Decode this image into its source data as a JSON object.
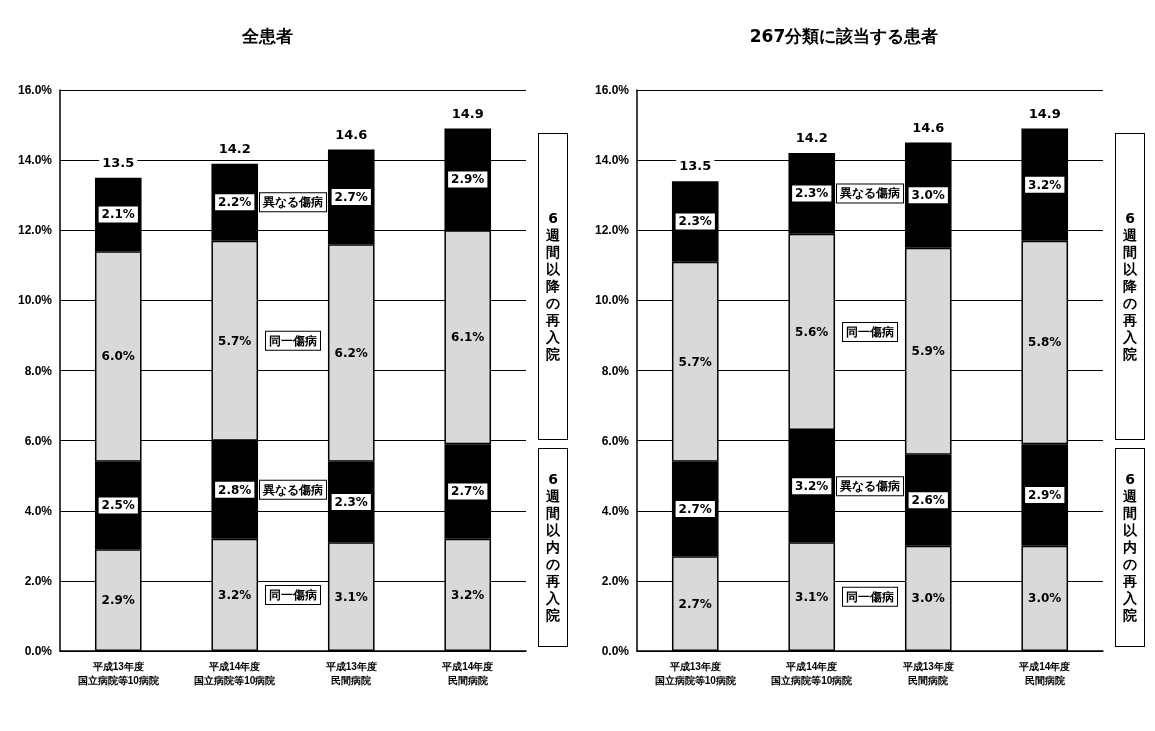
{
  "chart_data": [
    {
      "type": "bar",
      "title": "全患者",
      "stacked": true,
      "grid": "y",
      "categories": [
        "平成13年度国立病院等10病院",
        "平成14年度国立病院等10病院",
        "平成13年度民間病院",
        "平成14年度民間病院"
      ],
      "ylim": [
        0,
        16
      ],
      "yticks": [
        {
          "value": 0,
          "label": "0.0%"
        },
        {
          "value": 2,
          "label": "2.0%"
        },
        {
          "value": 4,
          "label": "4.0%"
        },
        {
          "value": 6,
          "label": "6.0%"
        },
        {
          "value": 8,
          "label": "8.0%"
        },
        {
          "value": 10,
          "label": "10.0%"
        },
        {
          "value": 12,
          "label": "12.0%"
        },
        {
          "value": 14,
          "label": "14.0%"
        },
        {
          "value": 16,
          "label": "16.0%"
        }
      ],
      "series": [
        {
          "name": "同一傷病",
          "color": "#d9d9d9",
          "values": [
            2.9,
            3.2,
            3.1,
            3.2
          ],
          "value_labels": [
            "2.9%",
            "3.2%",
            "3.1%",
            "3.2%"
          ]
        },
        {
          "name": "異なる傷病",
          "color": "#000000",
          "values": [
            2.5,
            2.8,
            2.3,
            2.7
          ],
          "value_labels": [
            "2.5%",
            "2.8%",
            "2.3%",
            "2.7%"
          ]
        },
        {
          "name": "同一傷病",
          "color": "#d9d9d9",
          "values": [
            6.0,
            5.7,
            6.2,
            6.1
          ],
          "value_labels": [
            "6.0%",
            "5.7%",
            "6.2%",
            "6.1%"
          ]
        },
        {
          "name": "異なる傷病",
          "color": "#000000",
          "values": [
            2.1,
            2.2,
            2.7,
            2.9
          ],
          "value_labels": [
            "2.1%",
            "2.2%",
            "2.7%",
            "2.9%"
          ]
        }
      ],
      "annotations": [
        {
          "text": "13.5",
          "x": "平成13年度国立病院等10病院",
          "y": 13.5
        },
        {
          "text": "14.2",
          "x": "平成14年度国立病院等10病院",
          "y": 13.9
        },
        {
          "text": "14.6",
          "x": "平成13年度民間病院",
          "y": 14.3
        },
        {
          "text": "14.9",
          "x": "平成14年度民間病院",
          "y": 14.9
        },
        "6週間以内の再入院",
        "6週間以降の再入院"
      ]
    },
    {
      "type": "bar",
      "title": "267分類に該当する患者",
      "stacked": true,
      "grid": "y",
      "categories": [
        "平成13年度国立病院等10病院",
        "平成14年度国立病院等10病院",
        "平成13年度民間病院",
        "平成14年度民間病院"
      ],
      "ylim": [
        0,
        16
      ],
      "yticks": [
        {
          "value": 0,
          "label": "0.0%"
        },
        {
          "value": 2,
          "label": "2.0%"
        },
        {
          "value": 4,
          "label": "4.0%"
        },
        {
          "value": 6,
          "label": "6.0%"
        },
        {
          "value": 8,
          "label": "8.0%"
        },
        {
          "value": 10,
          "label": "10.0%"
        },
        {
          "value": 12,
          "label": "12.0%"
        },
        {
          "value": 14,
          "label": "14.0%"
        },
        {
          "value": 16,
          "label": "16.0%"
        }
      ],
      "series": [
        {
          "name": "同一傷病",
          "color": "#d9d9d9",
          "values": [
            2.7,
            3.1,
            3.0,
            3.0
          ],
          "value_labels": [
            "2.7%",
            "3.1%",
            "3.0%",
            "3.0%"
          ]
        },
        {
          "name": "異なる傷病",
          "color": "#000000",
          "values": [
            2.7,
            3.2,
            2.6,
            2.9
          ],
          "value_labels": [
            "2.7%",
            "3.2%",
            "2.6%",
            "2.9%"
          ]
        },
        {
          "name": "同一傷病",
          "color": "#d9d9d9",
          "values": [
            5.7,
            5.6,
            5.9,
            5.8
          ],
          "value_labels": [
            "5.7%",
            "5.6%",
            "5.9%",
            "5.8%"
          ]
        },
        {
          "name": "異なる傷病",
          "color": "#000000",
          "values": [
            2.3,
            2.3,
            3.0,
            3.2
          ],
          "value_labels": [
            "2.3%",
            "2.3%",
            "3.0%",
            "3.2%"
          ]
        }
      ],
      "annotations": [
        {
          "text": "13.5",
          "x": "平成13年度国立病院等10病院",
          "y": 13.4
        },
        {
          "text": "14.2",
          "x": "平成14年度国立病院等10病院",
          "y": 14.2
        },
        {
          "text": "14.6",
          "x": "平成13年度民間病院",
          "y": 14.5
        },
        {
          "text": "14.9",
          "x": "平成14年度民間病院",
          "y": 14.9
        },
        "6週間以内の再入院",
        "6週間以降の再入院"
      ]
    }
  ]
}
